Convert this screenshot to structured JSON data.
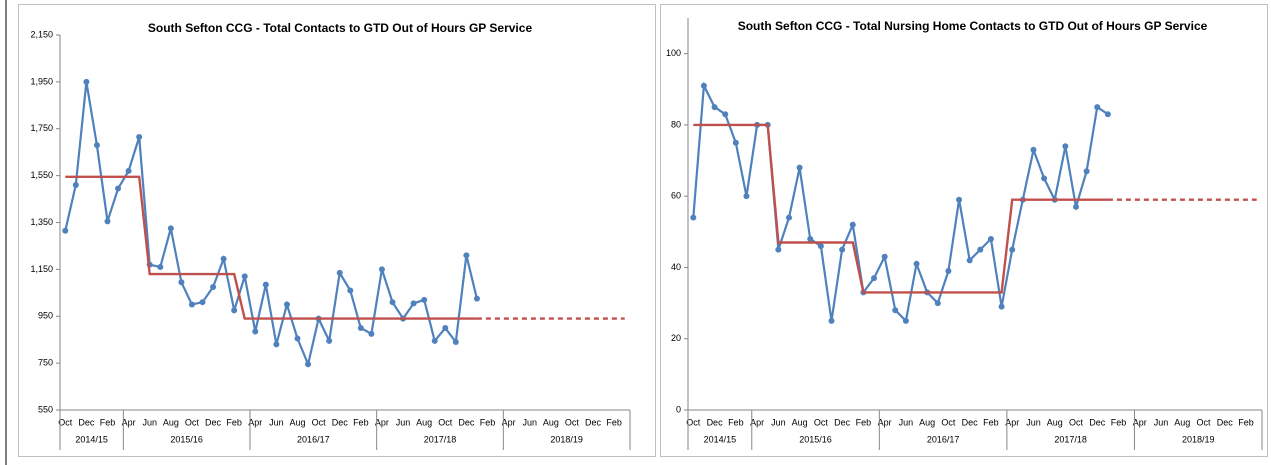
{
  "chart_data": [
    {
      "type": "line",
      "title": "South Sefton CCG -  Total Contacts to GTD Out of Hours GP Service",
      "categories": [
        "Oct",
        null,
        "Dec",
        null,
        "Feb",
        null,
        "Apr",
        null,
        "Jun",
        null,
        "Aug",
        null,
        "Oct",
        null,
        "Dec",
        null,
        "Feb",
        null,
        "Apr",
        null,
        "Jun",
        null,
        "Aug",
        null,
        "Oct",
        null,
        "Dec",
        null,
        "Feb",
        null,
        "Apr",
        null,
        "Jun",
        null,
        "Aug",
        null,
        "Oct",
        null,
        "Dec",
        null,
        "Feb",
        null,
        "Apr",
        null,
        "Jun",
        null,
        "Aug",
        null,
        "Oct",
        null,
        "Dec",
        null,
        "Feb",
        null
      ],
      "groups": [
        "2014/15",
        "2015/16",
        "2016/17",
        "2017/18",
        "2018/19"
      ],
      "ylim": [
        550,
        2150
      ],
      "yticks": [
        550,
        750,
        950,
        {
          "value": 1150,
          "label": "1,150"
        },
        {
          "value": 1350,
          "label": "1,350"
        },
        {
          "value": 1550,
          "label": "1,550"
        },
        {
          "value": 1750,
          "label": "1,750"
        },
        {
          "value": 1950,
          "label": "1,950"
        },
        {
          "value": 2150,
          "label": "2,150"
        }
      ],
      "series": [
        {
          "color": "#4f81bd",
          "markers": true,
          "values": [
            1315,
            1510,
            1950,
            1680,
            1355,
            1495,
            1570,
            1715,
            1170,
            1160,
            1325,
            1095,
            1000,
            1010,
            1075,
            1195,
            975,
            1120,
            885,
            1085,
            830,
            1000,
            855,
            745,
            940,
            845,
            1135,
            1060,
            900,
            875,
            1150,
            1010,
            940,
            1005,
            1020,
            845,
            900,
            840,
            1210,
            1025,
            null,
            null,
            null,
            null,
            null,
            null,
            null,
            null,
            null,
            null,
            null,
            null,
            null,
            null
          ]
        },
        {
          "color": "#c0504d",
          "values": [
            1545,
            1545,
            1545,
            1545,
            1545,
            1545,
            1545,
            1545,
            1130,
            1130,
            1130,
            1130,
            1130,
            1130,
            1130,
            1130,
            1130,
            940,
            940,
            940,
            940,
            940,
            940,
            940,
            940,
            940,
            940,
            940,
            940,
            940,
            940,
            940,
            940,
            940,
            940,
            940,
            940,
            940,
            940,
            940,
            null,
            null,
            null,
            null,
            null,
            null,
            null,
            null,
            null,
            null,
            null,
            null,
            null,
            null
          ]
        },
        {
          "color": "#c0504d",
          "dashed": true,
          "values": [
            null,
            null,
            null,
            null,
            null,
            null,
            null,
            null,
            null,
            null,
            null,
            null,
            null,
            null,
            null,
            null,
            null,
            null,
            null,
            null,
            null,
            null,
            null,
            null,
            null,
            null,
            null,
            null,
            null,
            null,
            null,
            null,
            null,
            null,
            null,
            null,
            null,
            null,
            null,
            940,
            940,
            940,
            940,
            940,
            940,
            940,
            940,
            940,
            940,
            940,
            940,
            940,
            940,
            940
          ]
        }
      ]
    },
    {
      "type": "line",
      "title": "South Sefton CCG -  Total Nursing Home Contacts to GTD Out of Hours GP Service",
      "categories": [
        "Oct",
        null,
        "Dec",
        null,
        "Feb",
        null,
        "Apr",
        null,
        "Jun",
        null,
        "Aug",
        null,
        "Oct",
        null,
        "Dec",
        null,
        "Feb",
        null,
        "Apr",
        null,
        "Jun",
        null,
        "Aug",
        null,
        "Oct",
        null,
        "Dec",
        null,
        "Feb",
        null,
        "Apr",
        null,
        "Jun",
        null,
        "Aug",
        null,
        "Oct",
        null,
        "Dec",
        null,
        "Feb",
        null,
        "Apr",
        null,
        "Jun",
        null,
        "Aug",
        null,
        "Oct",
        null,
        "Dec",
        null,
        "Feb",
        null
      ],
      "groups": [
        "2014/15",
        "2015/16",
        "2016/17",
        "2017/18",
        "2018/19"
      ],
      "ylim": [
        0,
        110
      ],
      "yticks": [
        0,
        20,
        40,
        60,
        80,
        100
      ],
      "series": [
        {
          "color": "#4f81bd",
          "markers": true,
          "values": [
            54,
            91,
            85,
            83,
            75,
            60,
            80,
            80,
            45,
            54,
            68,
            48,
            46,
            25,
            45,
            52,
            33,
            37,
            43,
            28,
            25,
            41,
            33,
            30,
            39,
            59,
            42,
            45,
            48,
            29,
            45,
            59,
            73,
            65,
            59,
            74,
            57,
            67,
            85,
            83,
            null,
            null,
            null,
            null,
            null,
            null,
            null,
            null,
            null,
            null,
            null,
            null,
            null,
            null
          ]
        },
        {
          "color": "#c0504d",
          "values": [
            80,
            80,
            80,
            80,
            80,
            80,
            80,
            80,
            47,
            47,
            47,
            47,
            47,
            47,
            47,
            47,
            33,
            33,
            33,
            33,
            33,
            33,
            33,
            33,
            33,
            33,
            33,
            33,
            33,
            33,
            59,
            59,
            59,
            59,
            59,
            59,
            59,
            59,
            59,
            59,
            null,
            null,
            null,
            null,
            null,
            null,
            null,
            null,
            null,
            null,
            null,
            null,
            null,
            null
          ]
        },
        {
          "color": "#c0504d",
          "dashed": true,
          "values": [
            null,
            null,
            null,
            null,
            null,
            null,
            null,
            null,
            null,
            null,
            null,
            null,
            null,
            null,
            null,
            null,
            null,
            null,
            null,
            null,
            null,
            null,
            null,
            null,
            null,
            null,
            null,
            null,
            null,
            null,
            null,
            null,
            null,
            null,
            null,
            null,
            null,
            null,
            null,
            59,
            59,
            59,
            59,
            59,
            59,
            59,
            59,
            59,
            59,
            59,
            59,
            59,
            59,
            59
          ]
        }
      ]
    }
  ]
}
